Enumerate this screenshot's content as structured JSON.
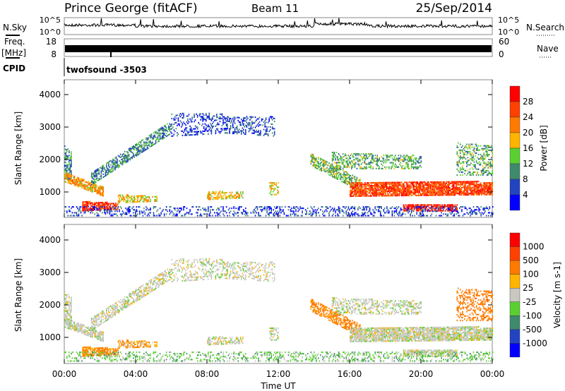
{
  "header": {
    "station": "Prince George (fitACF)",
    "beam": "Beam 11",
    "date": "25/Sep/2014"
  },
  "nsky": {
    "label": "N.Sky",
    "right_label": "N.Search",
    "ticks": [
      "10^5",
      "10^0"
    ]
  },
  "freq": {
    "label": "Freq.",
    "unit": "[MHz]",
    "ticks": [
      "18",
      "8"
    ],
    "right_label": "Nave",
    "right_ticks": [
      "60",
      "0"
    ]
  },
  "cpid": {
    "label": "CPID",
    "value": "twofsound -3503"
  },
  "chart_data": [
    {
      "type": "heatmap",
      "title": "Power",
      "ylabel": "Slant Range [km]",
      "xlabel": "Time UT",
      "xlim": [
        0,
        24
      ],
      "ylim": [
        180,
        4450
      ],
      "yticks": [
        "1000",
        "2000",
        "3000",
        "4000"
      ],
      "xticks": [
        "00:00",
        "04:00",
        "08:00",
        "12:00",
        "16:00",
        "20:00",
        "00:00"
      ],
      "colorbar": {
        "label": "Power [dB]",
        "ticks": [
          "4",
          "8",
          "12",
          "16",
          "20",
          "24",
          "28"
        ],
        "colors": [
          "#0000ff",
          "#2244c0",
          "#3f8a6c",
          "#5ad030",
          "#ffb400",
          "#ff7a00",
          "#ff4000",
          "#ff0000"
        ]
      }
    },
    {
      "type": "heatmap",
      "title": "Velocity",
      "ylabel": "Slant Range [km]",
      "xlabel": "Time UT",
      "xlim": [
        0,
        24
      ],
      "ylim": [
        180,
        4450
      ],
      "yticks": [
        "1000",
        "2000",
        "3000",
        "4000"
      ],
      "xticks": [
        "00:00",
        "04:00",
        "08:00",
        "12:00",
        "16:00",
        "20:00",
        "00:00"
      ],
      "colorbar": {
        "label": "Velocity [m s-1]",
        "ticks": [
          "1000",
          "500",
          "100",
          "25",
          "-25",
          "-100",
          "-500",
          "-1000"
        ],
        "colors": [
          "#0000ff",
          "#2244c0",
          "#3f8a6c",
          "#5ad030",
          "#c8c8c0",
          "#ffb400",
          "#ff7a00",
          "#ff4000",
          "#ff0000"
        ]
      }
    }
  ],
  "echo_bands": [
    {
      "t": [
        0,
        0.4
      ],
      "r0": [
        1400,
        1300
      ],
      "r1": [
        2400,
        2200
      ],
      "power": 10,
      "vel": 0,
      "density": 0.6
    },
    {
      "t": [
        0,
        2.2
      ],
      "r0": [
        1300,
        850
      ],
      "r1": [
        1600,
        1150
      ],
      "power": 20,
      "vel": 0,
      "density": 0.8
    },
    {
      "t": [
        1.0,
        3.0
      ],
      "r0": [
        400,
        450
      ],
      "r1": [
        700,
        650
      ],
      "power": 27,
      "vel": -150,
      "density": 0.8
    },
    {
      "t": [
        1.5,
        6.0
      ],
      "r0": [
        1200,
        2800
      ],
      "r1": [
        1600,
        3200
      ],
      "power": 9,
      "vel": 0,
      "density": 0.6
    },
    {
      "t": [
        6.0,
        9.0
      ],
      "r0": [
        2700,
        2800
      ],
      "r1": [
        3400,
        3400
      ],
      "power": 5,
      "vel": 0,
      "density": 0.35
    },
    {
      "t": [
        9.0,
        11.8
      ],
      "r0": [
        2800,
        2700
      ],
      "r1": [
        3300,
        3300
      ],
      "power": 6,
      "vel": 0,
      "density": 0.35
    },
    {
      "t": [
        3.0,
        5.2
      ],
      "r0": [
        650,
        700
      ],
      "r1": [
        900,
        850
      ],
      "power": 18,
      "vel": -80,
      "density": 0.6
    },
    {
      "t": [
        8.0,
        10.0
      ],
      "r0": [
        750,
        800
      ],
      "r1": [
        1000,
        1000
      ],
      "power": 18,
      "vel": 0,
      "density": 0.6
    },
    {
      "t": [
        11.5,
        12.0
      ],
      "r0": [
        900,
        900
      ],
      "r1": [
        1300,
        1300
      ],
      "power": 17,
      "vel": 0,
      "density": 0.5
    },
    {
      "t": [
        13.8,
        16.6
      ],
      "r0": [
        1800,
        1000
      ],
      "r1": [
        2200,
        1400
      ],
      "power": 13,
      "vel": -200,
      "density": 0.6
    },
    {
      "t": [
        15.0,
        20.0
      ],
      "r0": [
        1700,
        1700
      ],
      "r1": [
        2200,
        2100
      ],
      "power": 12,
      "vel": 0,
      "density": 0.45
    },
    {
      "t": [
        16.0,
        24.0
      ],
      "r0": [
        850,
        900
      ],
      "r1": [
        1300,
        1300
      ],
      "power": 26,
      "vel": 0,
      "density": 0.85
    },
    {
      "t": [
        19.0,
        22.0
      ],
      "r0": [
        400,
        400
      ],
      "r1": [
        600,
        600
      ],
      "power": 29,
      "vel": 0,
      "density": 0.8
    },
    {
      "t": [
        0,
        24
      ],
      "r0": [
        250,
        250
      ],
      "r1": [
        550,
        550
      ],
      "power": 5,
      "vel": 60,
      "density": 0.3
    },
    {
      "t": [
        22.0,
        24.0
      ],
      "r0": [
        1500,
        1500
      ],
      "r1": [
        2500,
        2400
      ],
      "power": 12,
      "vel": -300,
      "density": 0.4
    }
  ]
}
